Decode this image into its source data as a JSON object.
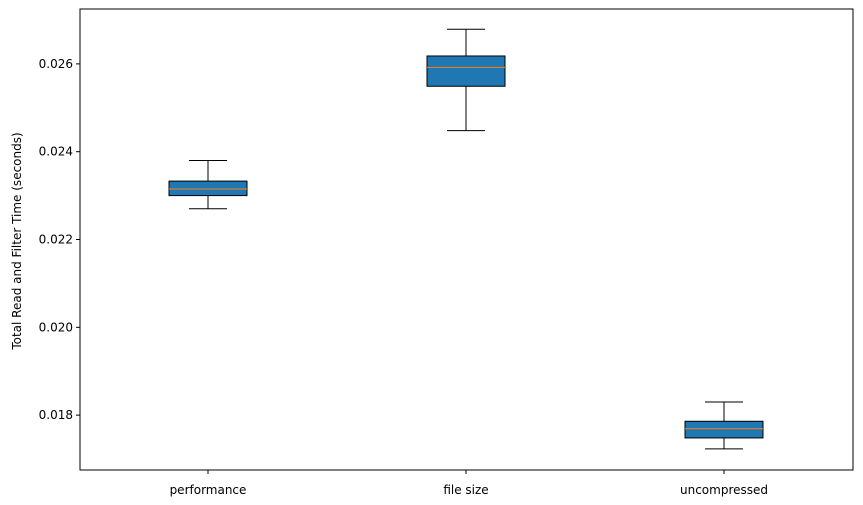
{
  "chart_data": {
    "type": "boxplot",
    "title": "",
    "xlabel": "",
    "ylabel": "Total Read and Filter Time (seconds)",
    "categories": [
      "performance",
      "file size",
      "uncompressed"
    ],
    "boxes": [
      {
        "category": "performance",
        "whisker_low": 0.0227,
        "q1": 0.023,
        "median": 0.02315,
        "q3": 0.02333,
        "whisker_high": 0.0238
      },
      {
        "category": "file size",
        "whisker_low": 0.02448,
        "q1": 0.02549,
        "median": 0.02592,
        "q3": 0.02618,
        "whisker_high": 0.02679
      },
      {
        "category": "uncompressed",
        "whisker_low": 0.01723,
        "q1": 0.01748,
        "median": 0.01769,
        "q3": 0.01786,
        "whisker_high": 0.0183
      }
    ],
    "ylim": [
      0.01675,
      0.02725
    ],
    "yticks": [
      0.018,
      0.02,
      0.022,
      0.024,
      0.026
    ],
    "ytick_labels": [
      "0.018",
      "0.020",
      "0.022",
      "0.024",
      "0.026"
    ],
    "grid": false,
    "legend": "none",
    "colors": {
      "box_fill": "#1f77b4",
      "median": "#ff7f0e",
      "edge": "#000000"
    }
  }
}
